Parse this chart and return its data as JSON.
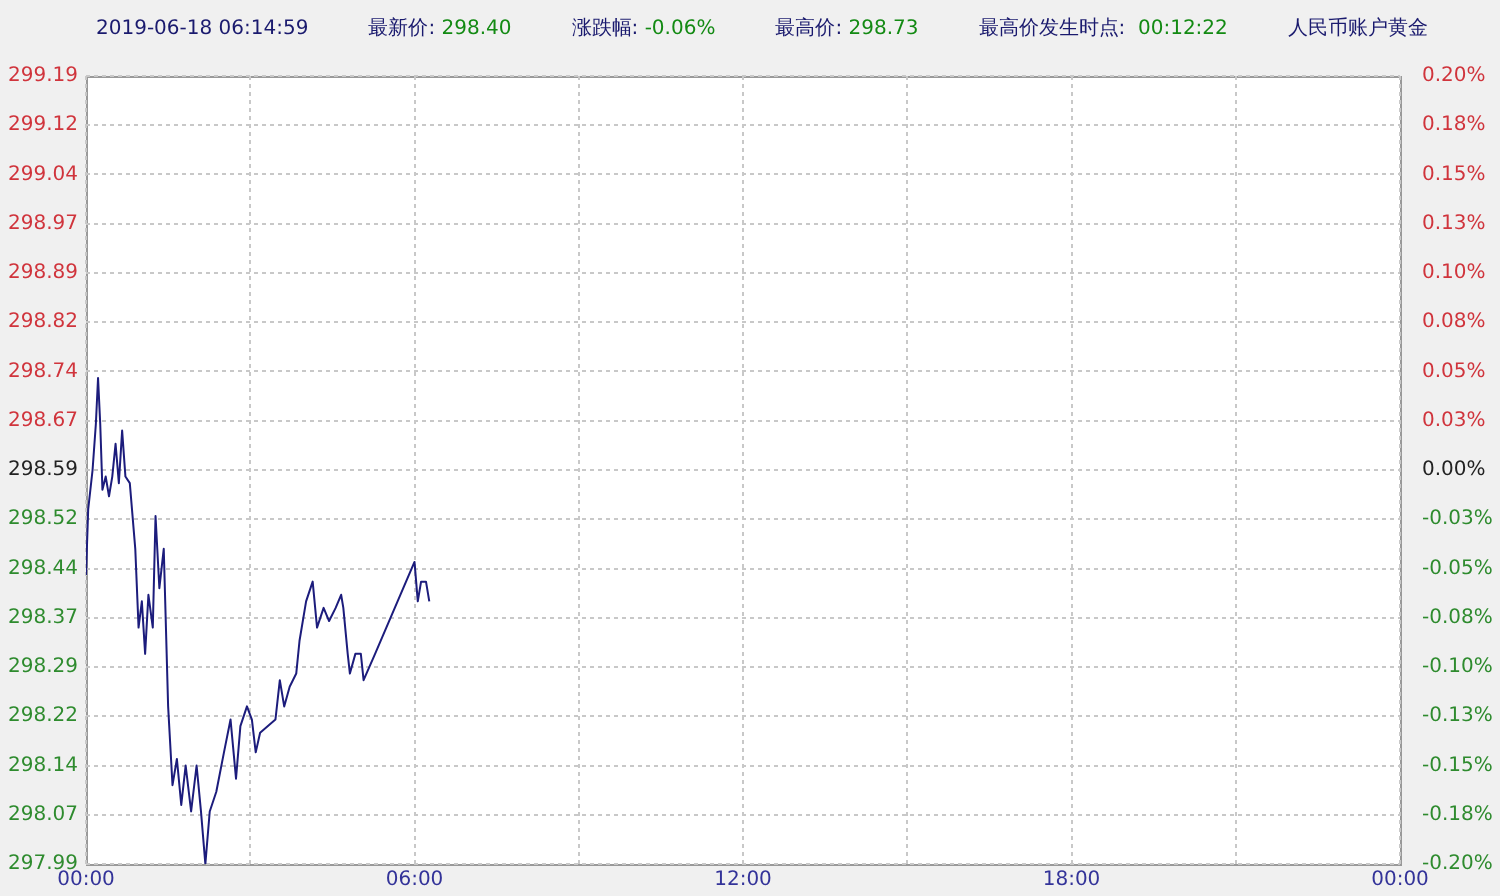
{
  "chart_data": {
    "type": "line",
    "annotations": [
      "2019-06-18 06:14:59",
      "最新价: 298.40",
      "涨跌幅: -0.06%",
      "最高价: 298.73",
      "最高价发生时点:  00:12:22",
      "人民币账户黄金"
    ],
    "x": [
      0.0,
      0.04,
      0.12,
      0.18,
      0.22,
      0.26,
      0.3,
      0.36,
      0.42,
      0.48,
      0.54,
      0.6,
      0.66,
      0.72,
      0.8,
      0.9,
      0.96,
      1.02,
      1.08,
      1.14,
      1.22,
      1.27,
      1.34,
      1.42,
      1.5,
      1.58,
      1.66,
      1.74,
      1.82,
      1.92,
      2.02,
      2.1,
      2.18,
      2.26,
      2.38,
      2.52,
      2.64,
      2.74,
      2.82,
      2.94,
      3.03,
      3.1,
      3.18,
      3.46,
      3.54,
      3.62,
      3.72,
      3.84,
      3.9,
      4.02,
      4.14,
      4.22,
      4.34,
      4.44,
      4.56,
      4.66,
      4.7,
      4.78,
      4.82,
      4.92,
      5.02,
      5.07,
      5.28,
      6.0,
      6.06,
      6.12,
      6.21,
      6.27
    ],
    "values": [
      298.43,
      298.53,
      298.59,
      298.66,
      298.73,
      298.66,
      298.56,
      298.58,
      298.55,
      298.58,
      298.63,
      298.57,
      298.65,
      298.58,
      298.57,
      298.47,
      298.35,
      298.39,
      298.31,
      298.4,
      298.35,
      298.52,
      298.41,
      298.47,
      298.23,
      298.11,
      298.15,
      298.08,
      298.14,
      298.07,
      298.14,
      298.07,
      297.99,
      298.07,
      298.1,
      298.16,
      298.21,
      298.12,
      298.2,
      298.23,
      298.21,
      298.16,
      298.19,
      298.21,
      298.27,
      298.23,
      298.26,
      298.28,
      298.33,
      298.39,
      298.42,
      298.35,
      298.38,
      298.36,
      298.38,
      298.4,
      298.38,
      298.31,
      298.28,
      298.31,
      298.31,
      298.27,
      298.31,
      298.45,
      298.39,
      298.42,
      298.42,
      298.39
    ],
    "color": "#1c1c7c",
    "xlim": [
      0,
      24
    ],
    "xticks": [
      {
        "value": 0,
        "label": "00:00"
      },
      {
        "value": 3,
        "label": null
      },
      {
        "value": 6,
        "label": "06:00"
      },
      {
        "value": 9,
        "label": null
      },
      {
        "value": 12,
        "label": "12:00"
      },
      {
        "value": 15,
        "label": null
      },
      {
        "value": 18,
        "label": "18:00"
      },
      {
        "value": 21,
        "label": null
      },
      {
        "value": 24,
        "label": "00:00"
      }
    ],
    "ylim": [
      297.99,
      299.19
    ],
    "yticks": [
      297.99,
      {
        "value": 298.065,
        "label": "298.07"
      },
      298.14,
      {
        "value": 298.215,
        "label": "298.22"
      },
      298.29,
      {
        "value": 298.365,
        "label": "298.37"
      },
      298.44,
      {
        "value": 298.515,
        "label": "298.52"
      },
      298.59,
      {
        "value": 298.665,
        "label": "298.67"
      },
      298.74,
      {
        "value": 298.815,
        "label": "298.82"
      },
      298.89,
      {
        "value": 298.965,
        "label": "298.97"
      },
      299.04,
      {
        "value": 299.115,
        "label": "299.12"
      },
      299.19
    ],
    "y2lim": [
      -0.2,
      0.2
    ],
    "y2ticks": [
      {
        "value": -0.2,
        "label": "-0.20%"
      },
      {
        "value": -0.175,
        "label": "-0.18%"
      },
      {
        "value": -0.15,
        "label": "-0.15%"
      },
      {
        "value": -0.125,
        "label": "-0.13%"
      },
      {
        "value": -0.1,
        "label": "-0.10%"
      },
      {
        "value": -0.075,
        "label": "-0.08%"
      },
      {
        "value": -0.05,
        "label": "-0.05%"
      },
      {
        "value": -0.025,
        "label": "-0.03%"
      },
      {
        "value": 0,
        "label": "0.00%"
      },
      {
        "value": 0.025,
        "label": "0.03%"
      },
      {
        "value": 0.05,
        "label": "0.05%"
      },
      {
        "value": 0.075,
        "label": "0.08%"
      },
      {
        "value": 0.1,
        "label": "0.10%"
      },
      {
        "value": 0.125,
        "label": "0.13%"
      },
      {
        "value": 0.15,
        "label": "0.15%"
      },
      {
        "value": 0.175,
        "label": "0.18%"
      },
      {
        "value": 0.2,
        "label": "0.20%"
      }
    ],
    "grid": true,
    "legend": false,
    "marker": "none",
    "line_style": "solid"
  }
}
